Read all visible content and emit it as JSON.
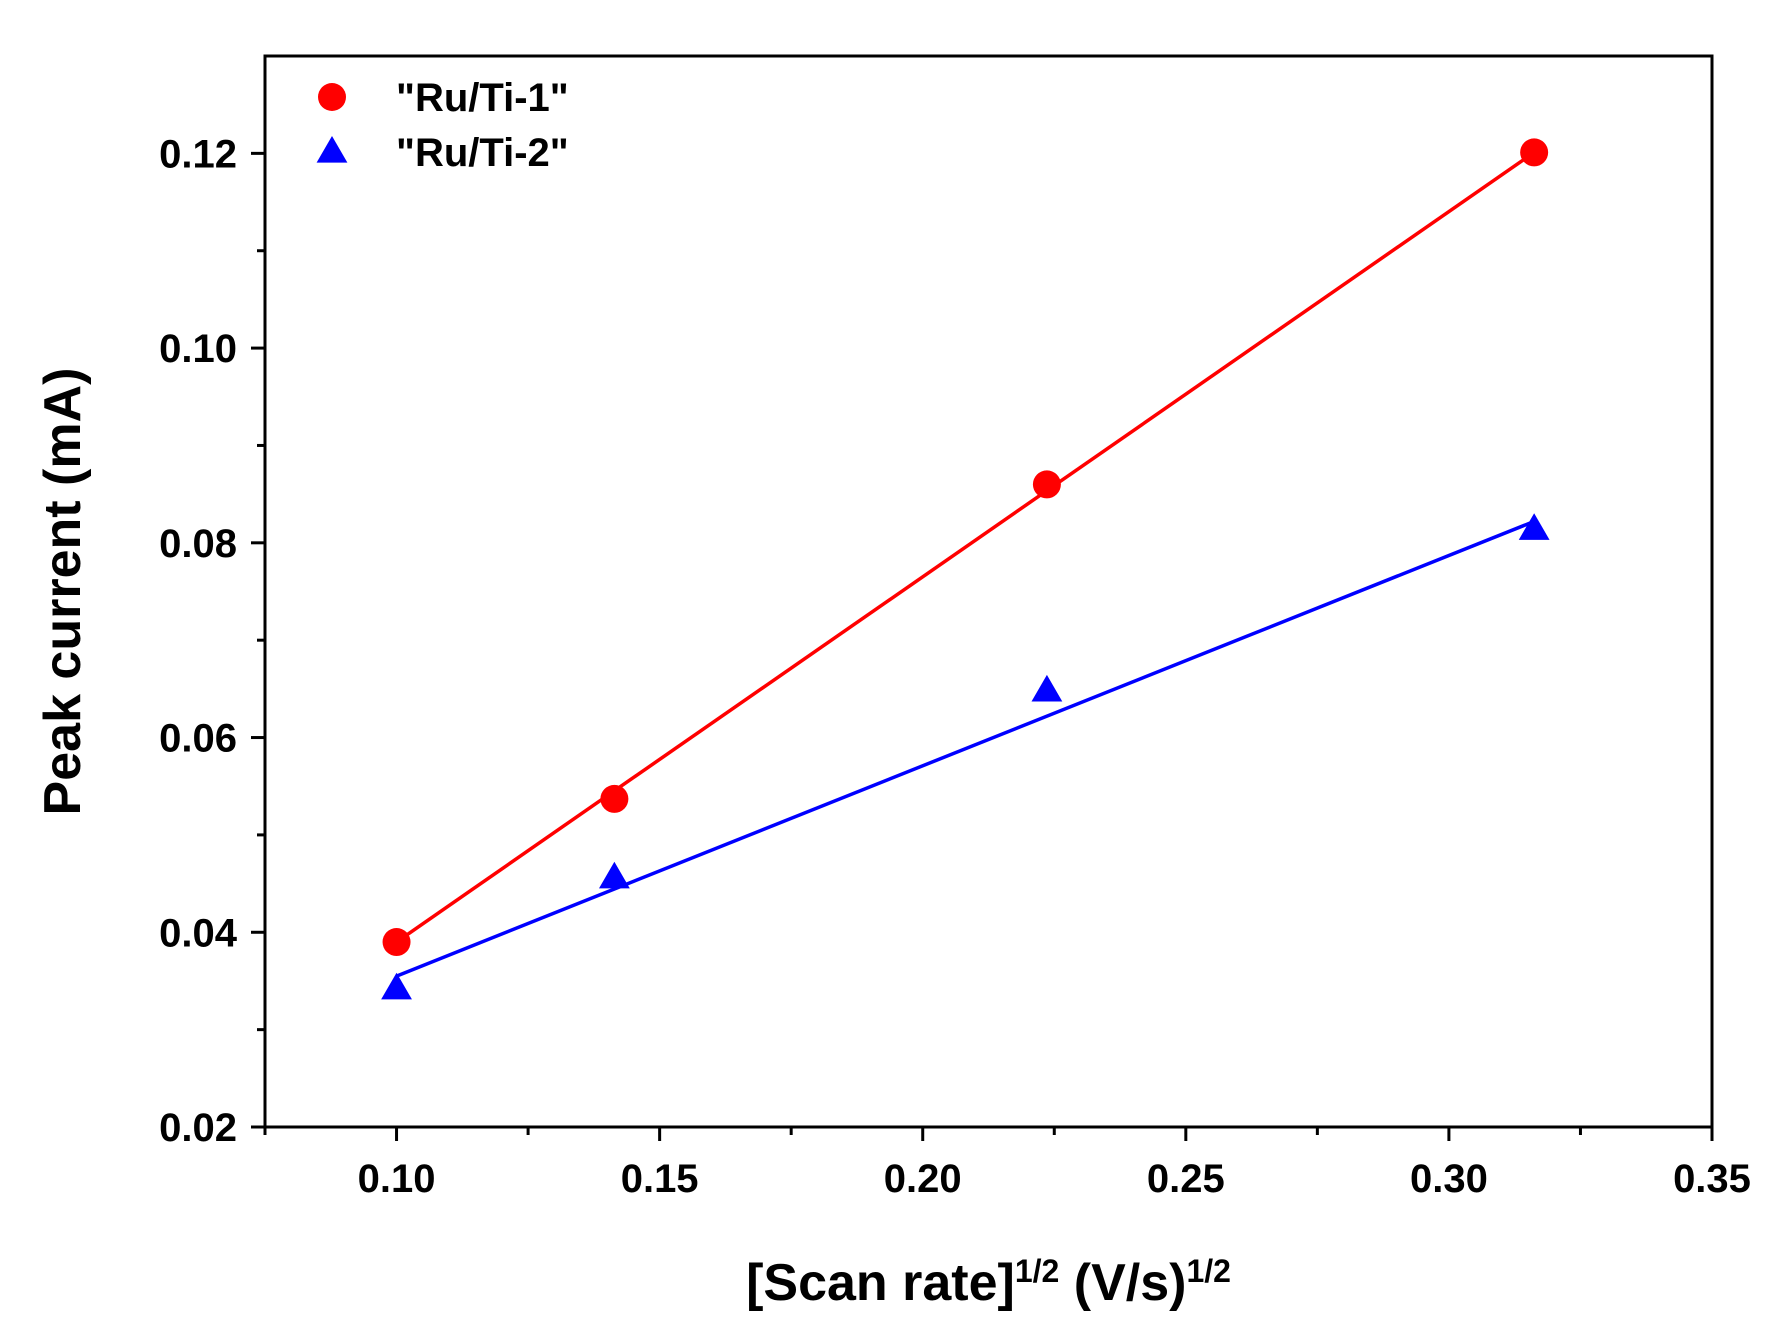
{
  "chart_data": {
    "type": "scatter",
    "x_label_main": "[Scan rate]",
    "x_label_sup1": "1/2",
    "x_label_mid": " (V/s)",
    "x_label_sup2": "1/2",
    "ylabel": "Peak current (mA)",
    "xlim": [
      0.075,
      0.35
    ],
    "ylim": [
      0.02,
      0.13
    ],
    "x_ticks": [
      0.1,
      0.15,
      0.2,
      0.25,
      0.3,
      0.35
    ],
    "x_tick_labels": [
      "0.10",
      "0.15",
      "0.20",
      "0.25",
      "0.30",
      "0.35"
    ],
    "x_minor_ticks": [
      0.075,
      0.125,
      0.175,
      0.225,
      0.275,
      0.325
    ],
    "y_ticks": [
      0.02,
      0.04,
      0.06,
      0.08,
      0.1,
      0.12
    ],
    "y_tick_labels": [
      "0.02",
      "0.04",
      "0.06",
      "0.08",
      "0.10",
      "0.12"
    ],
    "y_minor_ticks": [
      0.03,
      0.05,
      0.07,
      0.09,
      0.11
    ],
    "legend_position": "top-left",
    "series": [
      {
        "name": "\"Ru/Ti-1\"",
        "color": "#ff0000",
        "marker": "circle",
        "x": [
          0.1,
          0.1414,
          0.2236,
          0.3162
        ],
        "y": [
          0.039,
          0.0537,
          0.086,
          0.1201
        ],
        "fit_line": [
          [
            0.1,
            0.039
          ],
          [
            0.3162,
            0.1201
          ]
        ]
      },
      {
        "name": "\"Ru/Ti-2\"",
        "color": "#0000ff",
        "marker": "triangle",
        "x": [
          0.1,
          0.1414,
          0.2236,
          0.3162
        ],
        "y": [
          0.0342,
          0.0456,
          0.0648,
          0.0814
        ],
        "fit_line": [
          [
            0.1,
            0.0355
          ],
          [
            0.3162,
            0.0822
          ]
        ]
      }
    ]
  }
}
